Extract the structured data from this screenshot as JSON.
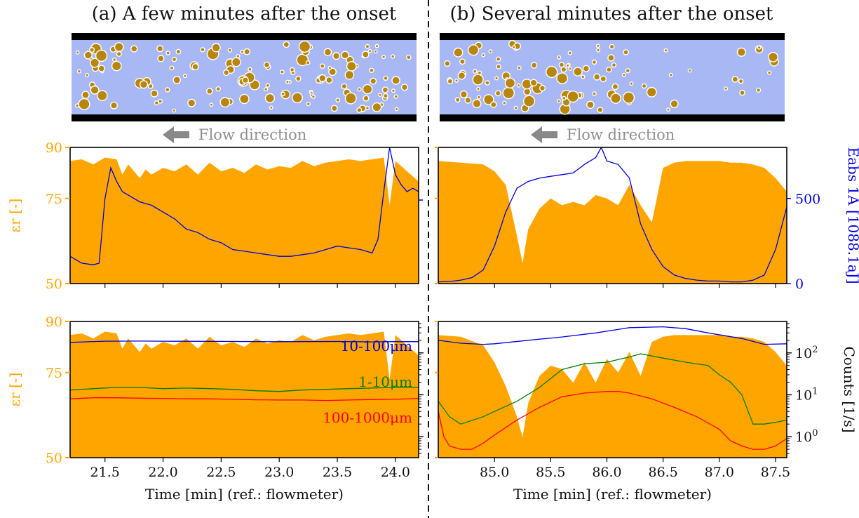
{
  "titles": {
    "left": "(a) A few minutes after the onset",
    "right": "(b) Several minutes after the onset"
  },
  "flow_label": "Flow direction",
  "x_label": "Time [min] (ref.: flowmeter)",
  "colors": {
    "permittivity": "#FFA500",
    "energy": "#0000DD",
    "band_10_100": "#0000DD",
    "band_1_10": "#007F00",
    "band_100_1000": "#FF0000",
    "pipe_fill": "#A8B8F5",
    "particle": "#B8860B"
  },
  "chart_data": [
    {
      "panel": "a-top",
      "type": "area",
      "xlim": [
        21.2,
        24.2
      ],
      "xticks": [
        "21.5",
        "22.0",
        "22.5",
        "23.0",
        "23.5",
        "24.0"
      ],
      "ylabel_left": "εr [-]",
      "ylim_left": [
        50,
        90
      ],
      "yticks_left": [
        "50",
        "75",
        "90"
      ],
      "right_axis_ticks_shown": false,
      "series": [
        {
          "name": "εr",
          "kind": "area",
          "x": [
            21.2,
            21.3,
            21.4,
            21.5,
            21.6,
            21.65,
            21.7,
            21.8,
            21.85,
            21.9,
            22.0,
            22.1,
            22.2,
            22.3,
            22.4,
            22.5,
            22.6,
            22.7,
            22.8,
            22.9,
            23.0,
            23.1,
            23.2,
            23.3,
            23.4,
            23.5,
            23.6,
            23.7,
            23.8,
            23.9,
            23.95,
            24.0,
            24.1,
            24.2
          ],
          "y": [
            86,
            86.5,
            85,
            87,
            86.5,
            82,
            85,
            81,
            83.5,
            82,
            84,
            83,
            85,
            82,
            85.5,
            83,
            84,
            82.5,
            85,
            83.5,
            84.5,
            84,
            86,
            84.5,
            85.5,
            86,
            86.5,
            86,
            86.5,
            87,
            73,
            86,
            83,
            80
          ]
        },
        {
          "name": "Eabs 1A",
          "kind": "line",
          "x": [
            21.2,
            21.3,
            21.4,
            21.45,
            21.5,
            21.55,
            21.6,
            21.65,
            21.7,
            21.8,
            21.9,
            22.0,
            22.1,
            22.2,
            22.3,
            22.4,
            22.5,
            22.6,
            22.7,
            22.8,
            22.9,
            23.0,
            23.1,
            23.2,
            23.3,
            23.4,
            23.5,
            23.6,
            23.7,
            23.8,
            23.85,
            23.9,
            23.95,
            24.0,
            24.05,
            24.1,
            24.15,
            24.2
          ],
          "y": [
            58,
            56,
            55.5,
            56,
            75,
            84,
            80,
            77,
            76,
            74,
            73,
            71,
            69,
            66,
            65,
            63,
            62,
            60,
            59.5,
            59,
            58.5,
            58,
            58,
            58.5,
            59,
            60,
            61,
            60.5,
            60,
            59,
            63,
            77,
            90,
            82,
            79,
            77,
            78,
            77
          ]
        }
      ]
    },
    {
      "panel": "b-top",
      "type": "area",
      "xlim": [
        84.5,
        87.6
      ],
      "xticks": [
        "85.0",
        "85.5",
        "86.0",
        "86.5",
        "87.0",
        "87.5"
      ],
      "ylabel_right": "Eabs 1A [1088.1aJ]",
      "ylim_right": [
        0,
        800
      ],
      "yticks_right": [
        "0",
        "500"
      ],
      "left_axis_ticks_shown": false,
      "series": [
        {
          "name": "εr",
          "kind": "area",
          "x": [
            84.5,
            84.7,
            84.9,
            85.0,
            85.1,
            85.2,
            85.25,
            85.3,
            85.4,
            85.5,
            85.6,
            85.7,
            85.8,
            85.9,
            86.0,
            86.1,
            86.2,
            86.3,
            86.4,
            86.5,
            86.6,
            86.7,
            86.8,
            86.9,
            87.0,
            87.1,
            87.2,
            87.3,
            87.4,
            87.5,
            87.6
          ],
          "y": [
            86,
            85.5,
            85,
            83,
            79,
            64,
            56,
            66,
            72,
            75,
            73,
            74,
            73,
            76,
            75,
            73,
            79,
            73,
            68,
            84,
            85.5,
            86,
            86,
            86,
            86,
            85.5,
            85.5,
            85,
            84,
            81,
            77
          ]
        },
        {
          "name": "Eabs 1A",
          "kind": "line",
          "x": [
            84.5,
            84.6,
            84.7,
            84.8,
            84.9,
            85.0,
            85.1,
            85.2,
            85.3,
            85.4,
            85.5,
            85.6,
            85.7,
            85.8,
            85.9,
            85.95,
            86.0,
            86.1,
            86.2,
            86.3,
            86.4,
            86.5,
            86.6,
            86.7,
            86.8,
            86.9,
            87.0,
            87.1,
            87.2,
            87.3,
            87.4,
            87.5,
            87.6
          ],
          "y": [
            10,
            12,
            20,
            35,
            80,
            220,
            420,
            560,
            600,
            620,
            630,
            640,
            650,
            700,
            740,
            800,
            720,
            700,
            620,
            350,
            200,
            100,
            50,
            30,
            20,
            15,
            15,
            10,
            10,
            20,
            50,
            200,
            450
          ]
        }
      ]
    },
    {
      "panel": "a-bottom",
      "type": "area",
      "xlim": [
        21.2,
        24.2
      ],
      "xticks": [
        "21.5",
        "22.0",
        "22.5",
        "23.0",
        "23.5",
        "24.0"
      ],
      "ylabel_left": "εr [-]",
      "ylim_left": [
        50,
        90
      ],
      "yticks_left": [
        "50",
        "75",
        "90"
      ],
      "right_scale": "log",
      "ylim_right_log10": [
        -0.5,
        2.75
      ],
      "series": [
        {
          "name": "εr",
          "kind": "area",
          "x": [
            21.2,
            21.3,
            21.4,
            21.5,
            21.6,
            21.65,
            21.7,
            21.8,
            21.85,
            21.9,
            22.0,
            22.1,
            22.2,
            22.3,
            22.4,
            22.5,
            22.6,
            22.7,
            22.8,
            22.9,
            23.0,
            23.1,
            23.2,
            23.3,
            23.4,
            23.5,
            23.6,
            23.7,
            23.8,
            23.9,
            23.95,
            24.0,
            24.1,
            24.2
          ],
          "y": [
            86,
            86.5,
            85,
            87,
            86.5,
            82,
            85,
            81,
            83.5,
            82,
            84,
            83,
            85,
            82,
            85.5,
            83,
            84,
            82.5,
            85,
            83.5,
            84.5,
            84,
            86,
            84.5,
            85.5,
            86,
            86.5,
            86,
            86.5,
            87,
            73,
            86,
            83,
            80
          ]
        },
        {
          "name": "10-100µm",
          "kind": "line",
          "x": [
            21.2,
            21.5,
            21.8,
            22.0,
            22.5,
            23.0,
            23.5,
            23.8,
            24.0,
            24.2
          ],
          "y": [
            178,
            190,
            192,
            190,
            188,
            185,
            187,
            183,
            186,
            185
          ]
        },
        {
          "name": "1-10µm",
          "kind": "line",
          "x": [
            21.2,
            21.4,
            21.6,
            21.8,
            22.0,
            22.2,
            22.4,
            22.6,
            22.8,
            23.0,
            23.2,
            23.4,
            23.6,
            23.8,
            24.0,
            24.2
          ],
          "y": [
            13,
            14,
            15,
            15,
            14,
            14.5,
            14,
            13.5,
            12.5,
            12,
            13,
            13.5,
            14,
            14.5,
            15,
            15
          ]
        },
        {
          "name": "100-1000µm",
          "kind": "line",
          "x": [
            21.2,
            21.4,
            21.6,
            21.8,
            22.0,
            22.2,
            22.4,
            22.6,
            22.8,
            23.0,
            23.2,
            23.4,
            23.6,
            23.8,
            24.0,
            24.2
          ],
          "y": [
            8,
            8.5,
            8.5,
            8.3,
            8.2,
            8,
            8,
            7.8,
            7.6,
            7.5,
            7.5,
            7.3,
            7.5,
            7.7,
            7.8,
            8.2
          ]
        }
      ],
      "annotations": [
        "10-100μm",
        "1-10μm",
        "100-1000μm"
      ]
    },
    {
      "panel": "b-bottom",
      "type": "area",
      "xlim": [
        84.5,
        87.6
      ],
      "xticks": [
        "85.0",
        "85.5",
        "86.0",
        "86.5",
        "87.0",
        "87.5"
      ],
      "ylabel_right": "Counts [1/s]",
      "right_scale": "log",
      "ylim_right_log10": [
        -0.5,
        2.75
      ],
      "yticks_right": [
        "10^0",
        "10^1",
        "10^2"
      ],
      "left_axis_ticks_shown": false,
      "series": [
        {
          "name": "εr",
          "kind": "area",
          "x": [
            84.5,
            84.7,
            84.9,
            85.0,
            85.1,
            85.2,
            85.25,
            85.3,
            85.4,
            85.5,
            85.6,
            85.7,
            85.8,
            85.9,
            86.0,
            86.1,
            86.2,
            86.3,
            86.4,
            86.5,
            86.6,
            86.7,
            86.8,
            86.9,
            87.0,
            87.1,
            87.2,
            87.3,
            87.4,
            87.5,
            87.6
          ],
          "y": [
            86,
            85.5,
            83,
            78,
            71,
            62,
            56,
            66,
            74,
            77,
            76,
            72,
            78,
            72,
            79,
            75,
            81,
            74,
            84,
            85.5,
            86,
            86,
            86,
            86,
            86,
            85.5,
            85.5,
            85,
            84,
            81,
            77
          ]
        },
        {
          "name": "10-100µm",
          "kind": "line",
          "x": [
            84.5,
            84.7,
            84.9,
            85.0,
            85.3,
            85.6,
            85.9,
            86.2,
            86.5,
            86.7,
            86.9,
            87.2,
            87.4,
            87.6
          ],
          "y": [
            200,
            170,
            160,
            165,
            200,
            240,
            300,
            400,
            420,
            380,
            300,
            220,
            160,
            165
          ]
        },
        {
          "name": "1-10µm",
          "kind": "line",
          "x": [
            84.5,
            84.6,
            84.7,
            84.9,
            85.0,
            85.2,
            85.4,
            85.6,
            85.8,
            86.0,
            86.2,
            86.3,
            86.5,
            86.7,
            86.9,
            87.0,
            87.1,
            87.2,
            87.3,
            87.4,
            87.5,
            87.6
          ],
          "y": [
            7,
            3,
            2,
            3,
            4,
            7,
            15,
            40,
            55,
            60,
            80,
            95,
            75,
            60,
            50,
            30,
            20,
            10,
            2,
            2,
            2.2,
            2.5
          ]
        },
        {
          "name": "100-1000µm",
          "kind": "line",
          "x": [
            84.5,
            84.55,
            84.6,
            84.7,
            84.8,
            84.9,
            85.0,
            85.2,
            85.4,
            85.6,
            85.8,
            86.0,
            86.1,
            86.2,
            86.4,
            86.6,
            86.8,
            87.0,
            87.1,
            87.2,
            87.3,
            87.4,
            87.5,
            87.6
          ],
          "y": [
            4,
            1,
            0.6,
            0.5,
            0.5,
            0.7,
            1.1,
            2.5,
            5,
            9,
            11,
            12,
            12,
            11,
            8,
            5,
            3,
            1.5,
            0.8,
            0.6,
            0.5,
            0.5,
            0.6,
            0.9
          ]
        }
      ]
    }
  ]
}
